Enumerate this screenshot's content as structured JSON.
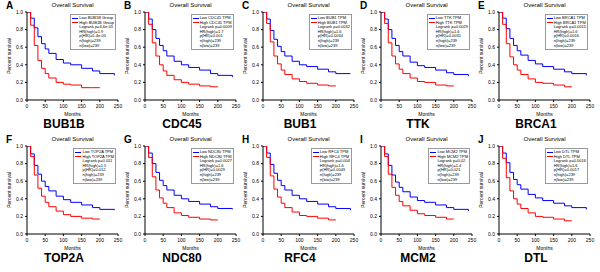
{
  "chart_data": [
    {
      "type": "line",
      "label": "A",
      "caption": "BUB1B",
      "title": "Overall Survival",
      "xlabel": "Months",
      "ylabel": "Percent survival",
      "x": [
        0,
        10,
        20,
        30,
        40,
        50,
        60,
        80,
        100,
        120,
        150,
        180,
        200,
        240
      ],
      "series": [
        {
          "name": "Low BUB1B Group",
          "color": "#0000ff",
          "values": [
            1,
            0.93,
            0.82,
            0.72,
            0.64,
            0.58,
            0.53,
            0.46,
            0.42,
            0.4,
            0.36,
            0.33,
            0.3,
            0.28
          ]
        },
        {
          "name": "High BUB1B Group",
          "color": "#ff0000",
          "values": [
            1,
            0.85,
            0.62,
            0.45,
            0.36,
            0.3,
            0.25,
            0.2,
            0.18,
            0.17,
            0.14,
            0.14,
            0.14,
            null
          ]
        }
      ],
      "annotations": [
        "Logrank p=4.6e-05",
        "HR(high)=1.9",
        "p(HR)=5.4e-05",
        "n(high)=239",
        "n(low)=239"
      ],
      "xlim": [
        0,
        250
      ],
      "xticks": [
        0,
        50,
        100,
        150,
        200,
        250
      ],
      "ylim": [
        0,
        1
      ],
      "yticks": [
        {
          "value": 0,
          "label": "0.0"
        },
        {
          "value": 0.2,
          "label": "0.2"
        },
        {
          "value": 0.4,
          "label": "0.4"
        },
        {
          "value": 0.6,
          "label": "0.6"
        },
        {
          "value": 0.8,
          "label": "0.8"
        },
        {
          "value": 1,
          "label": "1.0"
        }
      ],
      "grid": false,
      "line_style": "step"
    },
    {
      "type": "line",
      "label": "B",
      "caption": "CDC45",
      "title": "Overall Survival",
      "xlabel": "Months",
      "ylabel": "Percent survival",
      "x": [
        0,
        10,
        20,
        30,
        40,
        50,
        60,
        80,
        100,
        120,
        150,
        180,
        200,
        240
      ],
      "series": [
        {
          "name": "Low CDC45 TPM",
          "color": "#0000ff",
          "values": [
            1,
            0.92,
            0.8,
            0.7,
            0.62,
            0.56,
            0.5,
            0.44,
            0.4,
            0.37,
            0.34,
            0.3,
            0.28,
            0.26
          ]
        },
        {
          "name": "High CDC45 TPM",
          "color": "#ff0000",
          "values": [
            1,
            0.86,
            0.65,
            0.5,
            0.4,
            0.33,
            0.28,
            0.23,
            0.2,
            0.18,
            0.16,
            0.15,
            0.15,
            null
          ]
        }
      ],
      "annotations": [
        "Logrank p=0.0009",
        "HR(high)=1.7",
        "p(HR)=0.001",
        "n(high)=239",
        "n(low)=239"
      ],
      "xlim": [
        0,
        250
      ],
      "xticks": [
        0,
        50,
        100,
        150,
        200,
        250
      ],
      "ylim": [
        0,
        1
      ],
      "yticks": [
        {
          "value": 0,
          "label": "0.0"
        },
        {
          "value": 0.2,
          "label": "0.2"
        },
        {
          "value": 0.4,
          "label": "0.4"
        },
        {
          "value": 0.6,
          "label": "0.6"
        },
        {
          "value": 0.8,
          "label": "0.8"
        },
        {
          "value": 1,
          "label": "1.0"
        }
      ],
      "grid": false,
      "line_style": "step"
    },
    {
      "type": "line",
      "label": "C",
      "caption": "BUB1",
      "title": "Overall Survival",
      "xlabel": "Months",
      "ylabel": "Percent survival",
      "x": [
        0,
        10,
        20,
        30,
        40,
        50,
        60,
        80,
        100,
        120,
        150,
        180,
        200,
        240
      ],
      "series": [
        {
          "name": "Low BUB1 TPM",
          "color": "#0000ff",
          "values": [
            1,
            0.92,
            0.79,
            0.69,
            0.61,
            0.55,
            0.5,
            0.44,
            0.4,
            0.38,
            0.35,
            0.32,
            0.3,
            0.3
          ]
        },
        {
          "name": "High BUB1 TPM",
          "color": "#ff0000",
          "values": [
            1,
            0.87,
            0.66,
            0.5,
            0.41,
            0.34,
            0.29,
            0.24,
            0.21,
            0.19,
            0.17,
            0.16,
            0.16,
            null
          ]
        }
      ],
      "annotations": [
        "Logrank p=0.0032",
        "HR(high)=1.6",
        "p(HR)=0.0034",
        "n(high)=239",
        "n(low)=239"
      ],
      "xlim": [
        0,
        250
      ],
      "xticks": [
        0,
        50,
        100,
        150,
        200,
        250
      ],
      "ylim": [
        0,
        1
      ],
      "yticks": [
        {
          "value": 0,
          "label": "0.0"
        },
        {
          "value": 0.2,
          "label": "0.2"
        },
        {
          "value": 0.4,
          "label": "0.4"
        },
        {
          "value": 0.6,
          "label": "0.6"
        },
        {
          "value": 0.8,
          "label": "0.8"
        },
        {
          "value": 1,
          "label": "1.0"
        }
      ],
      "grid": false,
      "line_style": "step"
    },
    {
      "type": "line",
      "label": "D",
      "caption": "TTK",
      "title": "Overall Survival",
      "xlabel": "Months",
      "ylabel": "Percent survival",
      "x": [
        0,
        10,
        20,
        30,
        40,
        50,
        60,
        80,
        100,
        120,
        150,
        180,
        200,
        240
      ],
      "series": [
        {
          "name": "Low TTK TPM",
          "color": "#0000ff",
          "values": [
            1,
            0.92,
            0.8,
            0.7,
            0.62,
            0.55,
            0.5,
            0.43,
            0.39,
            0.37,
            0.34,
            0.31,
            0.29,
            0.27
          ]
        },
        {
          "name": "High TTK TPM",
          "color": "#ff0000",
          "values": [
            1,
            0.87,
            0.65,
            0.5,
            0.41,
            0.35,
            0.3,
            0.25,
            0.21,
            0.2,
            0.17,
            0.16,
            0.16,
            null
          ]
        }
      ],
      "annotations": [
        "Logrank p=0.0029",
        "HR(high)=1.6",
        "p(HR)=0.0031",
        "n(high)=239",
        "n(low)=239"
      ],
      "xlim": [
        0,
        250
      ],
      "xticks": [
        0,
        50,
        100,
        150,
        200,
        250
      ],
      "ylim": [
        0,
        1
      ],
      "yticks": [
        {
          "value": 0,
          "label": "0.0"
        },
        {
          "value": 0.2,
          "label": "0.2"
        },
        {
          "value": 0.4,
          "label": "0.4"
        },
        {
          "value": 0.6,
          "label": "0.6"
        },
        {
          "value": 0.8,
          "label": "0.8"
        },
        {
          "value": 1,
          "label": "1.0"
        }
      ],
      "grid": false,
      "line_style": "step"
    },
    {
      "type": "line",
      "label": "E",
      "caption": "BRCA1",
      "title": "Overall Survival",
      "xlabel": "Months",
      "ylabel": "Percent survival",
      "x": [
        0,
        10,
        20,
        30,
        40,
        50,
        60,
        80,
        100,
        120,
        150,
        180,
        200,
        240
      ],
      "series": [
        {
          "name": "Low BRCA1 TPM",
          "color": "#0000ff",
          "values": [
            1,
            0.93,
            0.81,
            0.7,
            0.62,
            0.56,
            0.51,
            0.45,
            0.41,
            0.38,
            0.35,
            0.32,
            0.3,
            0.28
          ]
        },
        {
          "name": "High BRCA1 TPM",
          "color": "#ff0000",
          "values": [
            1,
            0.86,
            0.64,
            0.49,
            0.4,
            0.34,
            0.29,
            0.24,
            0.2,
            0.19,
            0.17,
            0.15,
            0.15,
            null
          ]
        }
      ],
      "annotations": [
        "Logrank p=0.0015",
        "HR(high)=1.6",
        "p(HR)=0.0016",
        "n(high)=239",
        "n(low)=239"
      ],
      "xlim": [
        0,
        250
      ],
      "xticks": [
        0,
        50,
        100,
        150,
        200,
        250
      ],
      "ylim": [
        0,
        1
      ],
      "yticks": [
        {
          "value": 0,
          "label": "0.0"
        },
        {
          "value": 0.2,
          "label": "0.2"
        },
        {
          "value": 0.4,
          "label": "0.4"
        },
        {
          "value": 0.6,
          "label": "0.6"
        },
        {
          "value": 0.8,
          "label": "0.8"
        },
        {
          "value": 1,
          "label": "1.0"
        }
      ],
      "grid": false,
      "line_style": "step"
    },
    {
      "type": "line",
      "label": "F",
      "caption": "TOP2A",
      "title": "Overall Survival",
      "xlabel": "Months",
      "ylabel": "Percent survival",
      "x": [
        0,
        10,
        20,
        30,
        40,
        50,
        60,
        80,
        100,
        120,
        150,
        180,
        200,
        240
      ],
      "series": [
        {
          "name": "Low TOP2A TPM",
          "color": "#0000ff",
          "values": [
            1,
            0.91,
            0.78,
            0.68,
            0.6,
            0.54,
            0.49,
            0.43,
            0.39,
            0.36,
            0.33,
            0.3,
            0.28,
            0.27
          ]
        },
        {
          "name": "High TOP2A TPM",
          "color": "#ff0000",
          "values": [
            1,
            0.88,
            0.67,
            0.52,
            0.43,
            0.36,
            0.31,
            0.26,
            0.22,
            0.2,
            0.18,
            0.17,
            0.17,
            null
          ]
        }
      ],
      "annotations": [
        "Logrank p=0.011",
        "HR(high)=1.5",
        "p(HR)=0.012",
        "n(high)=239",
        "n(low)=239"
      ],
      "xlim": [
        0,
        250
      ],
      "xticks": [
        0,
        50,
        100,
        150,
        200,
        250
      ],
      "ylim": [
        0,
        1
      ],
      "yticks": [
        {
          "value": 0,
          "label": "0.0"
        },
        {
          "value": 0.2,
          "label": "0.2"
        },
        {
          "value": 0.4,
          "label": "0.4"
        },
        {
          "value": 0.6,
          "label": "0.6"
        },
        {
          "value": 0.8,
          "label": "0.8"
        },
        {
          "value": 1,
          "label": "1.0"
        }
      ],
      "grid": false,
      "line_style": "step"
    },
    {
      "type": "line",
      "label": "G",
      "caption": "NDC80",
      "title": "Overall Survival",
      "xlabel": "Months",
      "ylabel": "Percent survival",
      "x": [
        0,
        10,
        20,
        30,
        40,
        50,
        60,
        80,
        100,
        120,
        150,
        180,
        200,
        240
      ],
      "series": [
        {
          "name": "Low NDC80 TPM",
          "color": "#0000ff",
          "values": [
            1,
            0.92,
            0.8,
            0.7,
            0.61,
            0.55,
            0.5,
            0.44,
            0.4,
            0.37,
            0.34,
            0.31,
            0.29,
            0.28
          ]
        },
        {
          "name": "High NDC80 TPM",
          "color": "#ff0000",
          "values": [
            1,
            0.87,
            0.65,
            0.5,
            0.41,
            0.35,
            0.3,
            0.24,
            0.21,
            0.19,
            0.17,
            0.16,
            0.16,
            null
          ]
        }
      ],
      "annotations": [
        "Logrank p=0.0027",
        "HR(high)=1.6",
        "p(HR)=0.0029",
        "n(high)=239",
        "n(low)=239"
      ],
      "xlim": [
        0,
        250
      ],
      "xticks": [
        0,
        50,
        100,
        150,
        200,
        250
      ],
      "ylim": [
        0,
        1
      ],
      "yticks": [
        {
          "value": 0,
          "label": "0.0"
        },
        {
          "value": 0.2,
          "label": "0.2"
        },
        {
          "value": 0.4,
          "label": "0.4"
        },
        {
          "value": 0.6,
          "label": "0.6"
        },
        {
          "value": 0.8,
          "label": "0.8"
        },
        {
          "value": 1,
          "label": "1.0"
        }
      ],
      "grid": false,
      "line_style": "step"
    },
    {
      "type": "line",
      "label": "H",
      "caption": "RFC4",
      "title": "Overall Survival",
      "xlabel": "Months",
      "ylabel": "Percent survival",
      "x": [
        0,
        10,
        20,
        30,
        40,
        50,
        60,
        80,
        100,
        120,
        150,
        180,
        200,
        240
      ],
      "series": [
        {
          "name": "Low RFC4 TPM",
          "color": "#0000ff",
          "values": [
            1,
            0.92,
            0.79,
            0.69,
            0.61,
            0.55,
            0.5,
            0.44,
            0.4,
            0.37,
            0.34,
            0.31,
            0.29,
            0.27
          ]
        },
        {
          "name": "High RFC4 TPM",
          "color": "#ff0000",
          "values": [
            1,
            0.87,
            0.66,
            0.51,
            0.42,
            0.35,
            0.3,
            0.25,
            0.21,
            0.2,
            0.18,
            0.16,
            0.16,
            null
          ]
        }
      ],
      "annotations": [
        "Logrank p=0.004",
        "HR(high)=1.6",
        "p(HR)=0.0043",
        "n(high)=239",
        "n(low)=239"
      ],
      "xlim": [
        0,
        250
      ],
      "xticks": [
        0,
        50,
        100,
        150,
        200,
        250
      ],
      "ylim": [
        0,
        1
      ],
      "yticks": [
        {
          "value": 0,
          "label": "0.0"
        },
        {
          "value": 0.2,
          "label": "0.2"
        },
        {
          "value": 0.4,
          "label": "0.4"
        },
        {
          "value": 0.6,
          "label": "0.6"
        },
        {
          "value": 0.8,
          "label": "0.8"
        },
        {
          "value": 1,
          "label": "1.0"
        }
      ],
      "grid": false,
      "line_style": "step"
    },
    {
      "type": "line",
      "label": "I",
      "caption": "MCM2",
      "title": "Overall Survival",
      "xlabel": "Months",
      "ylabel": "Percent survival",
      "x": [
        0,
        10,
        20,
        30,
        40,
        50,
        60,
        80,
        100,
        120,
        150,
        180,
        200,
        240
      ],
      "series": [
        {
          "name": "Low MCM2 TPM",
          "color": "#0000ff",
          "values": [
            1,
            0.91,
            0.78,
            0.67,
            0.59,
            0.53,
            0.48,
            0.42,
            0.38,
            0.36,
            0.33,
            0.3,
            0.28,
            0.26
          ]
        },
        {
          "name": "High MCM2 TPM",
          "color": "#ff0000",
          "values": [
            1,
            0.88,
            0.68,
            0.53,
            0.44,
            0.37,
            0.32,
            0.27,
            0.23,
            0.21,
            0.19,
            0.17,
            0.17,
            null
          ]
        }
      ],
      "annotations": [
        "Logrank p=0.02",
        "HR(high)=1.4",
        "p(HR)=0.021",
        "n(high)=239",
        "n(low)=239"
      ],
      "xlim": [
        0,
        250
      ],
      "xticks": [
        0,
        50,
        100,
        150,
        200,
        250
      ],
      "ylim": [
        0,
        1
      ],
      "yticks": [
        {
          "value": 0,
          "label": "0.0"
        },
        {
          "value": 0.2,
          "label": "0.2"
        },
        {
          "value": 0.4,
          "label": "0.4"
        },
        {
          "value": 0.6,
          "label": "0.6"
        },
        {
          "value": 0.8,
          "label": "0.8"
        },
        {
          "value": 1,
          "label": "1.0"
        }
      ],
      "grid": false,
      "line_style": "step"
    },
    {
      "type": "line",
      "label": "J",
      "caption": "DTL",
      "title": "Overall Survival",
      "xlabel": "Months",
      "ylabel": "Percent survival",
      "x": [
        0,
        10,
        20,
        30,
        40,
        50,
        60,
        80,
        100,
        120,
        150,
        180,
        200,
        240
      ],
      "series": [
        {
          "name": "Low DTL TPM",
          "color": "#0000ff",
          "values": [
            1,
            0.92,
            0.81,
            0.7,
            0.62,
            0.56,
            0.51,
            0.45,
            0.41,
            0.38,
            0.35,
            0.32,
            0.3,
            0.28
          ]
        },
        {
          "name": "High DTL TPM",
          "color": "#ff0000",
          "values": [
            1,
            0.86,
            0.64,
            0.49,
            0.4,
            0.34,
            0.29,
            0.24,
            0.2,
            0.19,
            0.17,
            0.15,
            0.15,
            null
          ]
        }
      ],
      "annotations": [
        "Logrank p=0.0016",
        "HR(high)=1.6",
        "p(HR)=0.0017",
        "n(high)=239",
        "n(low)=239"
      ],
      "xlim": [
        0,
        250
      ],
      "xticks": [
        0,
        50,
        100,
        150,
        200,
        250
      ],
      "ylim": [
        0,
        1
      ],
      "yticks": [
        {
          "value": 0,
          "label": "0.0"
        },
        {
          "value": 0.2,
          "label": "0.2"
        },
        {
          "value": 0.4,
          "label": "0.4"
        },
        {
          "value": 0.6,
          "label": "0.6"
        },
        {
          "value": 0.8,
          "label": "0.8"
        },
        {
          "value": 1,
          "label": "1.0"
        }
      ],
      "grid": false,
      "line_style": "step"
    }
  ]
}
